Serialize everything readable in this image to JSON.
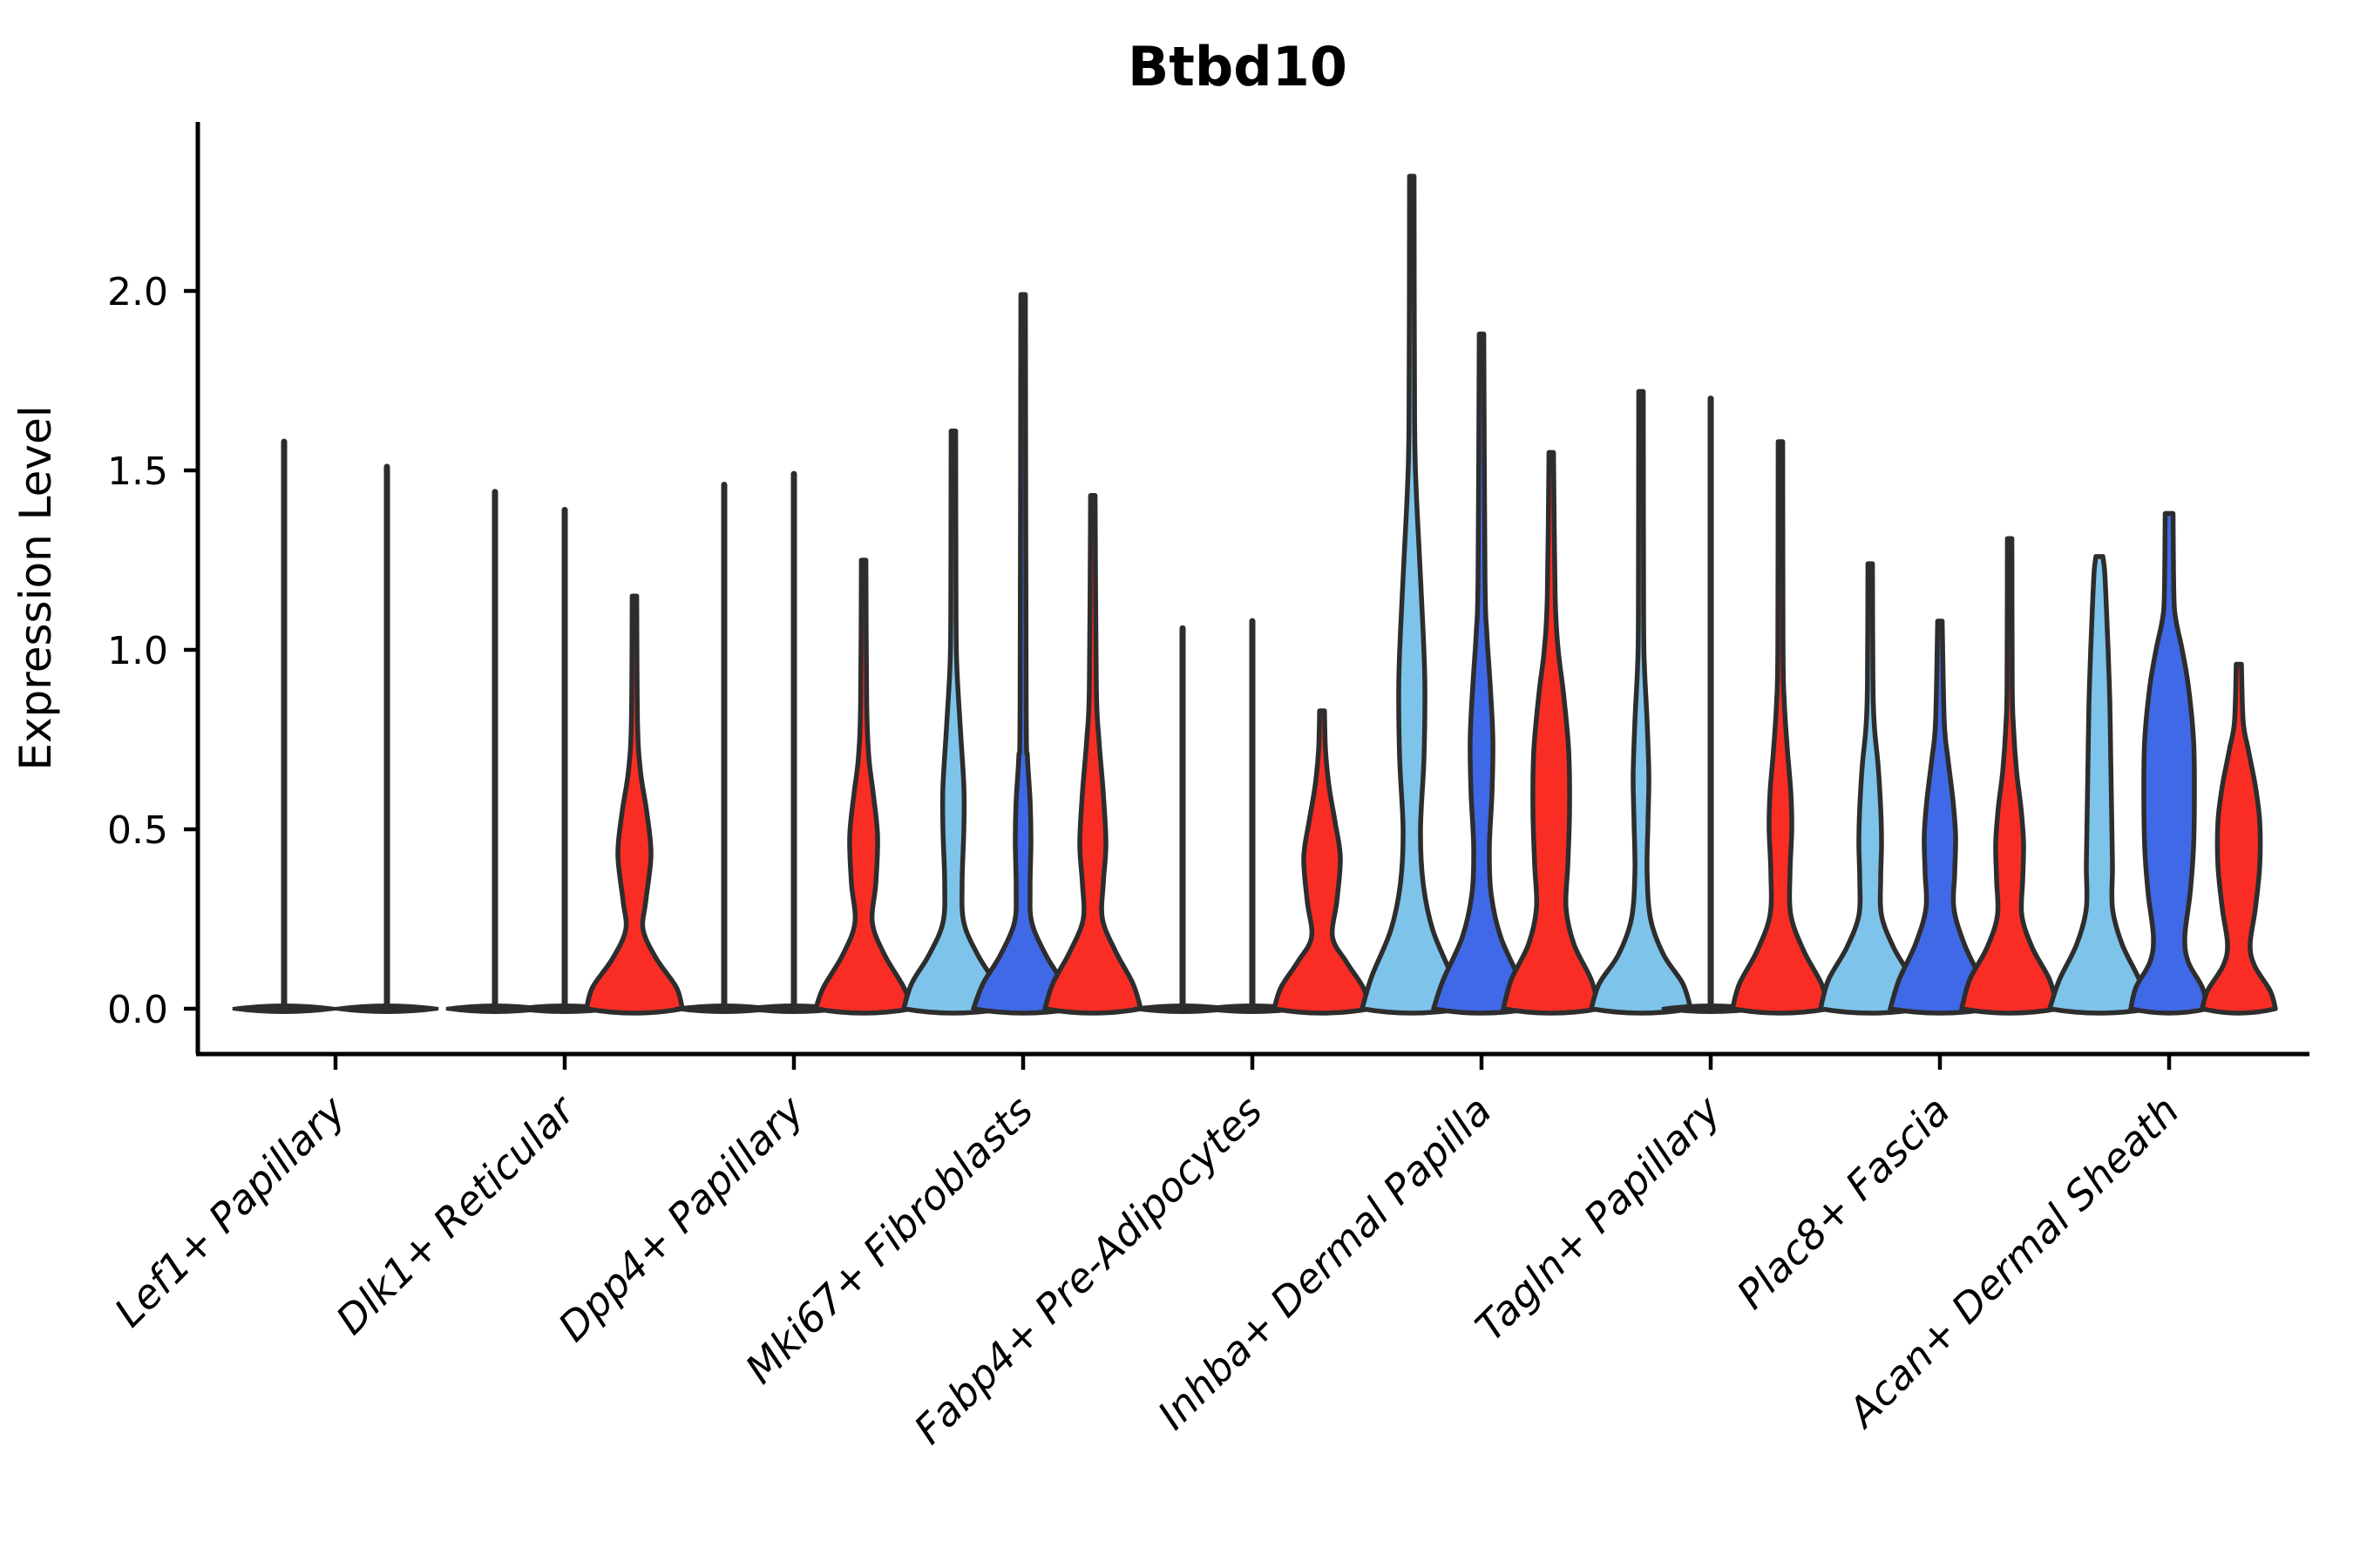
{
  "title": "Btbd10",
  "y_axis": {
    "label": "Expression Level",
    "ticks": [
      "0.0",
      "0.5",
      "1.0",
      "1.5",
      "2.0"
    ],
    "tick_values": [
      0.0,
      0.5,
      1.0,
      1.5,
      2.0
    ]
  },
  "palette": {
    "skyblue": "#7EC3EA",
    "royalblue": "#4069E8",
    "red": "#F92D24",
    "outline": "#2D2D2D",
    "axis": "#000000"
  },
  "chart_data": {
    "type": "violin",
    "title": "Btbd10",
    "xlabel": "",
    "ylabel": "Expression Level",
    "ylim": [
      -0.12,
      2.48
    ],
    "grid": false,
    "legend": "none",
    "categories": [
      "Lef1+ Papillary",
      "Dlk1+ Reticular",
      "Dpp4+ Papillary",
      "Mki67+ Fibroblasts",
      "Fabp4+ Pre-Adipocytes",
      "Inhba+ Dermal Papilla",
      "Tagln+ Papillary",
      "Plac8+ Fascia",
      "Acan+ Dermal Sheath"
    ],
    "series_colors": [
      "skyblue",
      "royalblue",
      "red"
    ],
    "note": "Each group: up to 3 violins. kind=spike means distribution collapsed at 0 with a thin tail to max. profile = [expression_value, half_width_px].",
    "groups": [
      {
        "category": "Lef1+ Papillary",
        "violins": [
          {
            "color": "outline",
            "kind": "spike",
            "max": 1.58,
            "dx": -59,
            "base_hw": 59
          },
          {
            "color": "outline",
            "kind": "spike",
            "max": 1.51,
            "dx": 59,
            "base_hw": 59
          }
        ]
      },
      {
        "category": "Dlk1+ Reticular",
        "violins": [
          {
            "color": "outline",
            "kind": "spike",
            "max": 1.44,
            "dx": -80,
            "base_hw": 56
          },
          {
            "color": "outline",
            "kind": "spike",
            "max": 1.39,
            "dx": 0,
            "base_hw": 56
          },
          {
            "color": "red",
            "kind": "violin",
            "max": 1.15,
            "dx": 80,
            "profile": [
              [
                0,
                55
              ],
              [
                0.06,
                48
              ],
              [
                0.14,
                25
              ],
              [
                0.22,
                10
              ],
              [
                0.3,
                13
              ],
              [
                0.43,
                19
              ],
              [
                0.55,
                14
              ],
              [
                0.66,
                7
              ],
              [
                0.8,
                3.5
              ],
              [
                1.15,
                2.6
              ]
            ]
          }
        ]
      },
      {
        "category": "Dpp4+ Papillary",
        "violins": [
          {
            "color": "outline",
            "kind": "spike",
            "max": 1.46,
            "dx": -80,
            "base_hw": 56
          },
          {
            "color": "outline",
            "kind": "spike",
            "max": 1.49,
            "dx": 0,
            "base_hw": 56
          },
          {
            "color": "red",
            "kind": "violin",
            "max": 1.25,
            "dx": 80,
            "profile": [
              [
                0,
                55
              ],
              [
                0.06,
                46
              ],
              [
                0.15,
                24
              ],
              [
                0.24,
                10
              ],
              [
                0.35,
                14
              ],
              [
                0.48,
                16
              ],
              [
                0.6,
                11
              ],
              [
                0.7,
                6
              ],
              [
                0.85,
                3.5
              ],
              [
                1.25,
                2.6
              ]
            ]
          }
        ]
      },
      {
        "category": "Mki67+ Fibroblasts",
        "violins": [
          {
            "color": "skyblue",
            "kind": "violin",
            "max": 1.61,
            "dx": -80,
            "profile": [
              [
                0,
                57
              ],
              [
                0.07,
                48
              ],
              [
                0.15,
                28
              ],
              [
                0.24,
                12
              ],
              [
                0.35,
                10
              ],
              [
                0.5,
                12
              ],
              [
                0.62,
                12
              ],
              [
                0.78,
                8
              ],
              [
                0.95,
                4
              ],
              [
                1.1,
                3
              ],
              [
                1.61,
                2.6
              ]
            ]
          },
          {
            "color": "royalblue",
            "kind": "violin",
            "max": 1.99,
            "dx": 0,
            "profile": [
              [
                0,
                57
              ],
              [
                0.07,
                46
              ],
              [
                0.15,
                26
              ],
              [
                0.24,
                10
              ],
              [
                0.33,
                8
              ],
              [
                0.47,
                9
              ],
              [
                0.58,
                8
              ],
              [
                0.7,
                5
              ],
              [
                0.85,
                3.5
              ],
              [
                1.99,
                2.6
              ]
            ]
          },
          {
            "color": "red",
            "kind": "violin",
            "max": 1.43,
            "dx": 80,
            "profile": [
              [
                0,
                55
              ],
              [
                0.07,
                46
              ],
              [
                0.16,
                26
              ],
              [
                0.25,
                11
              ],
              [
                0.35,
                12
              ],
              [
                0.46,
                15
              ],
              [
                0.6,
                12
              ],
              [
                0.75,
                7
              ],
              [
                0.9,
                4
              ],
              [
                1.43,
                2.6
              ]
            ]
          }
        ]
      },
      {
        "category": "Fabp4+ Pre-Adipocytes",
        "violins": [
          {
            "color": "outline",
            "kind": "spike",
            "max": 1.06,
            "dx": -80,
            "base_hw": 56
          },
          {
            "color": "outline",
            "kind": "spike",
            "max": 1.08,
            "dx": 0,
            "base_hw": 56
          },
          {
            "color": "red",
            "kind": "violin",
            "max": 0.83,
            "dx": 80,
            "profile": [
              [
                0,
                55
              ],
              [
                0.06,
                47
              ],
              [
                0.13,
                28
              ],
              [
                0.2,
                12
              ],
              [
                0.3,
                17
              ],
              [
                0.42,
                21
              ],
              [
                0.52,
                15
              ],
              [
                0.62,
                8
              ],
              [
                0.72,
                4
              ],
              [
                0.83,
                2.8
              ]
            ]
          }
        ]
      },
      {
        "category": "Inhba+ Dermal Papilla",
        "violins": [
          {
            "color": "skyblue",
            "kind": "violin",
            "max": 2.32,
            "dx": -80,
            "profile": [
              [
                0,
                57
              ],
              [
                0.09,
                46
              ],
              [
                0.22,
                24
              ],
              [
                0.35,
                13
              ],
              [
                0.5,
                10
              ],
              [
                0.7,
                14
              ],
              [
                0.9,
                15
              ],
              [
                1.05,
                13
              ],
              [
                1.25,
                9
              ],
              [
                1.45,
                5
              ],
              [
                1.65,
                3.2
              ],
              [
                2.32,
                2.6
              ]
            ]
          },
          {
            "color": "royalblue",
            "kind": "violin",
            "max": 1.88,
            "dx": 0,
            "profile": [
              [
                0,
                55
              ],
              [
                0.08,
                44
              ],
              [
                0.2,
                22
              ],
              [
                0.32,
                11
              ],
              [
                0.45,
                9
              ],
              [
                0.6,
                12
              ],
              [
                0.75,
                13
              ],
              [
                0.9,
                10
              ],
              [
                1.05,
                6
              ],
              [
                1.2,
                4
              ],
              [
                1.88,
                2.6
              ]
            ]
          },
          {
            "color": "red",
            "kind": "violin",
            "max": 1.55,
            "dx": 80,
            "profile": [
              [
                0,
                55
              ],
              [
                0.08,
                46
              ],
              [
                0.18,
                26
              ],
              [
                0.28,
                17
              ],
              [
                0.4,
                19
              ],
              [
                0.55,
                21
              ],
              [
                0.72,
                20
              ],
              [
                0.88,
                14
              ],
              [
                1.0,
                8
              ],
              [
                1.15,
                4.5
              ],
              [
                1.55,
                2.6
              ]
            ]
          }
        ]
      },
      {
        "category": "Tagln+ Papillary",
        "violins": [
          {
            "color": "skyblue",
            "kind": "violin",
            "max": 1.72,
            "dx": -80,
            "profile": [
              [
                0,
                57
              ],
              [
                0.07,
                48
              ],
              [
                0.15,
                26
              ],
              [
                0.25,
                11
              ],
              [
                0.38,
                7
              ],
              [
                0.52,
                8
              ],
              [
                0.65,
                9
              ],
              [
                0.8,
                7
              ],
              [
                0.95,
                4
              ],
              [
                1.1,
                3
              ],
              [
                1.72,
                2.6
              ]
            ]
          },
          {
            "color": "outline",
            "kind": "spike",
            "max": 1.7,
            "dx": 0,
            "base_hw": 56
          },
          {
            "color": "red",
            "kind": "violin",
            "max": 1.58,
            "dx": 80,
            "profile": [
              [
                0,
                55
              ],
              [
                0.07,
                47
              ],
              [
                0.16,
                27
              ],
              [
                0.26,
                12
              ],
              [
                0.38,
                11
              ],
              [
                0.5,
                13
              ],
              [
                0.6,
                12
              ],
              [
                0.72,
                8
              ],
              [
                0.85,
                4.5
              ],
              [
                1.0,
                3
              ],
              [
                1.58,
                2.6
              ]
            ]
          }
        ]
      },
      {
        "category": "Plac8+ Fascia",
        "violins": [
          {
            "color": "skyblue",
            "kind": "violin",
            "max": 1.24,
            "dx": -80,
            "profile": [
              [
                0,
                57
              ],
              [
                0.08,
                48
              ],
              [
                0.17,
                27
              ],
              [
                0.26,
                13
              ],
              [
                0.36,
                12
              ],
              [
                0.46,
                13
              ],
              [
                0.56,
                12
              ],
              [
                0.68,
                9
              ],
              [
                0.78,
                5
              ],
              [
                0.9,
                3.2
              ],
              [
                1.24,
                2.6
              ]
            ]
          },
          {
            "color": "royalblue",
            "kind": "violin",
            "max": 1.08,
            "dx": 0,
            "profile": [
              [
                0,
                57
              ],
              [
                0.08,
                47
              ],
              [
                0.18,
                28
              ],
              [
                0.28,
                16
              ],
              [
                0.38,
                17
              ],
              [
                0.48,
                18
              ],
              [
                0.58,
                15
              ],
              [
                0.7,
                9
              ],
              [
                0.8,
                5
              ],
              [
                1.08,
                2.6
              ]
            ]
          },
          {
            "color": "red",
            "kind": "violin",
            "max": 1.31,
            "dx": 80,
            "profile": [
              [
                0,
                55
              ],
              [
                0.08,
                46
              ],
              [
                0.17,
                26
              ],
              [
                0.26,
                14
              ],
              [
                0.36,
                15
              ],
              [
                0.46,
                16
              ],
              [
                0.56,
                13
              ],
              [
                0.66,
                8
              ],
              [
                0.78,
                4.5
              ],
              [
                0.9,
                3
              ],
              [
                1.31,
                2.6
              ]
            ]
          }
        ]
      },
      {
        "category": "Acan+ Dermal Sheath",
        "violins": [
          {
            "color": "skyblue",
            "kind": "violin",
            "max": 1.26,
            "dx": -80,
            "profile": [
              [
                0,
                57
              ],
              [
                0.08,
                46
              ],
              [
                0.18,
                26
              ],
              [
                0.28,
                15
              ],
              [
                0.4,
                15
              ],
              [
                0.55,
                14
              ],
              [
                0.7,
                13
              ],
              [
                0.85,
                12
              ],
              [
                1.0,
                10
              ],
              [
                1.12,
                8
              ],
              [
                1.22,
                6
              ],
              [
                1.26,
                4
              ]
            ]
          },
          {
            "color": "royalblue",
            "kind": "violin",
            "max": 1.38,
            "dx": 0,
            "profile": [
              [
                0,
                44
              ],
              [
                0.06,
                38
              ],
              [
                0.13,
                22
              ],
              [
                0.2,
                18
              ],
              [
                0.32,
                24
              ],
              [
                0.45,
                28
              ],
              [
                0.6,
                29
              ],
              [
                0.75,
                28
              ],
              [
                0.9,
                22
              ],
              [
                1.0,
                15
              ],
              [
                1.08,
                8
              ],
              [
                1.15,
                5.5
              ],
              [
                1.38,
                4.5
              ]
            ]
          },
          {
            "color": "red",
            "kind": "violin",
            "max": 0.96,
            "dx": 80,
            "profile": [
              [
                0,
                42
              ],
              [
                0.05,
                36
              ],
              [
                0.12,
                18
              ],
              [
                0.18,
                13
              ],
              [
                0.28,
                19
              ],
              [
                0.4,
                24
              ],
              [
                0.52,
                24
              ],
              [
                0.62,
                19
              ],
              [
                0.72,
                11
              ],
              [
                0.8,
                5
              ],
              [
                0.96,
                3
              ]
            ]
          }
        ]
      }
    ]
  }
}
